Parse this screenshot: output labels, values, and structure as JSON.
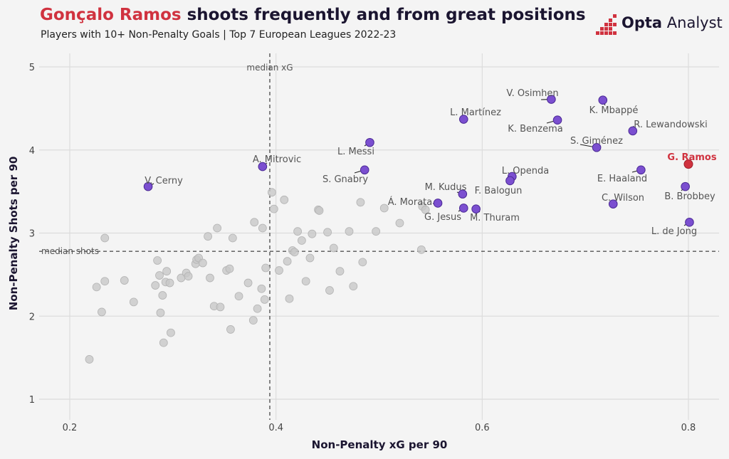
{
  "header": {
    "title_highlight": "Gonçalo Ramos",
    "title_rest": " shoots frequently and from great positions",
    "subtitle": "Players with 10+ Non-Penalty Goals | Top 7 European Leagues 2022-23"
  },
  "brand": {
    "name_bold": "Opta",
    "name_rest": " Analyst",
    "icon": "opta-bars-icon"
  },
  "colors": {
    "highlight": "#d0323f",
    "labeled": "#7b4fd0",
    "background_points": "#c8c8c8",
    "text": "#1b1530"
  },
  "chart_data": {
    "type": "scatter",
    "xlabel": "Non-Penalty xG per 90",
    "ylabel": "Non-Penalty Shots per 90",
    "xlim": [
      0.18,
      0.82
    ],
    "ylim": [
      0.9,
      5.2
    ],
    "xticks": [
      0.2,
      0.4,
      0.6,
      0.8
    ],
    "yticks": [
      1,
      2,
      3,
      4,
      5
    ],
    "xtick_labels": [
      "0.2",
      "0.4",
      "0.6",
      "0.8"
    ],
    "ytick_labels": [
      "1",
      "2",
      "3",
      "4",
      "5"
    ],
    "grid": true,
    "reference_lines": [
      {
        "axis": "x",
        "value": 0.394,
        "label": "median xG"
      },
      {
        "axis": "y",
        "value": 2.78,
        "label": "median shots"
      }
    ],
    "highlighted": [
      {
        "name": "G. Ramos",
        "x": 0.8,
        "y": 3.83
      }
    ],
    "labeled_points": [
      {
        "name": "V. Osimhen",
        "x": 0.667,
        "y": 4.61
      },
      {
        "name": "K. Mbappé",
        "x": 0.717,
        "y": 4.6
      },
      {
        "name": "L. Martínez",
        "x": 0.582,
        "y": 4.37
      },
      {
        "name": "K. Benzema",
        "x": 0.673,
        "y": 4.36
      },
      {
        "name": "R. Lewandowski",
        "x": 0.746,
        "y": 4.23
      },
      {
        "name": "L. Messi",
        "x": 0.491,
        "y": 4.09
      },
      {
        "name": "S. Giménez",
        "x": 0.711,
        "y": 4.03
      },
      {
        "name": "A. Mitrovic",
        "x": 0.387,
        "y": 3.8
      },
      {
        "name": "S. Gnabry",
        "x": 0.486,
        "y": 3.76
      },
      {
        "name": "E. Haaland",
        "x": 0.754,
        "y": 3.76
      },
      {
        "name": "L. Openda",
        "x": 0.629,
        "y": 3.68
      },
      {
        "name": "F. Balogun",
        "x": 0.627,
        "y": 3.63
      },
      {
        "name": "V. Cerny",
        "x": 0.276,
        "y": 3.56
      },
      {
        "name": "B. Brobbey",
        "x": 0.797,
        "y": 3.56
      },
      {
        "name": "M. Kudus",
        "x": 0.581,
        "y": 3.47
      },
      {
        "name": "Á. Morata",
        "x": 0.557,
        "y": 3.36
      },
      {
        "name": "C. Wilson",
        "x": 0.727,
        "y": 3.35
      },
      {
        "name": "G. Jesus",
        "x": 0.582,
        "y": 3.3
      },
      {
        "name": "M. Thuram",
        "x": 0.594,
        "y": 3.29
      },
      {
        "name": "L. de Jong",
        "x": 0.801,
        "y": 3.13
      }
    ],
    "other_points": [
      [
        0.219,
        1.48
      ],
      [
        0.226,
        2.35
      ],
      [
        0.234,
        2.42
      ],
      [
        0.231,
        2.05
      ],
      [
        0.234,
        2.94
      ],
      [
        0.253,
        2.43
      ],
      [
        0.262,
        2.17
      ],
      [
        0.283,
        2.37
      ],
      [
        0.285,
        2.67
      ],
      [
        0.287,
        2.49
      ],
      [
        0.288,
        2.04
      ],
      [
        0.29,
        2.25
      ],
      [
        0.291,
        1.68
      ],
      [
        0.293,
        2.41
      ],
      [
        0.294,
        2.54
      ],
      [
        0.297,
        2.4
      ],
      [
        0.298,
        1.8
      ],
      [
        0.308,
        2.46
      ],
      [
        0.313,
        2.52
      ],
      [
        0.315,
        2.48
      ],
      [
        0.322,
        2.63
      ],
      [
        0.323,
        2.68
      ],
      [
        0.325,
        2.7
      ],
      [
        0.329,
        2.64
      ],
      [
        0.334,
        2.96
      ],
      [
        0.336,
        2.46
      ],
      [
        0.34,
        2.12
      ],
      [
        0.343,
        3.06
      ],
      [
        0.346,
        2.11
      ],
      [
        0.352,
        2.55
      ],
      [
        0.355,
        2.57
      ],
      [
        0.356,
        1.84
      ],
      [
        0.358,
        2.94
      ],
      [
        0.364,
        2.24
      ],
      [
        0.373,
        2.4
      ],
      [
        0.378,
        1.95
      ],
      [
        0.379,
        3.13
      ],
      [
        0.382,
        2.09
      ],
      [
        0.386,
        2.33
      ],
      [
        0.387,
        3.06
      ],
      [
        0.389,
        2.2
      ],
      [
        0.39,
        2.58
      ],
      [
        0.396,
        3.49
      ],
      [
        0.398,
        3.29
      ],
      [
        0.403,
        2.55
      ],
      [
        0.408,
        3.4
      ],
      [
        0.411,
        2.66
      ],
      [
        0.413,
        2.21
      ],
      [
        0.416,
        2.79
      ],
      [
        0.418,
        2.77
      ],
      [
        0.421,
        3.02
      ],
      [
        0.425,
        2.91
      ],
      [
        0.429,
        2.42
      ],
      [
        0.433,
        2.7
      ],
      [
        0.435,
        2.99
      ],
      [
        0.441,
        3.28
      ],
      [
        0.442,
        3.27
      ],
      [
        0.45,
        3.01
      ],
      [
        0.452,
        2.31
      ],
      [
        0.456,
        2.82
      ],
      [
        0.462,
        2.54
      ],
      [
        0.471,
        3.02
      ],
      [
        0.475,
        2.36
      ],
      [
        0.482,
        3.37
      ],
      [
        0.484,
        2.65
      ],
      [
        0.497,
        3.02
      ],
      [
        0.505,
        3.3
      ],
      [
        0.52,
        3.12
      ],
      [
        0.541,
        2.8
      ],
      [
        0.542,
        3.32
      ],
      [
        0.545,
        3.28
      ]
    ]
  }
}
